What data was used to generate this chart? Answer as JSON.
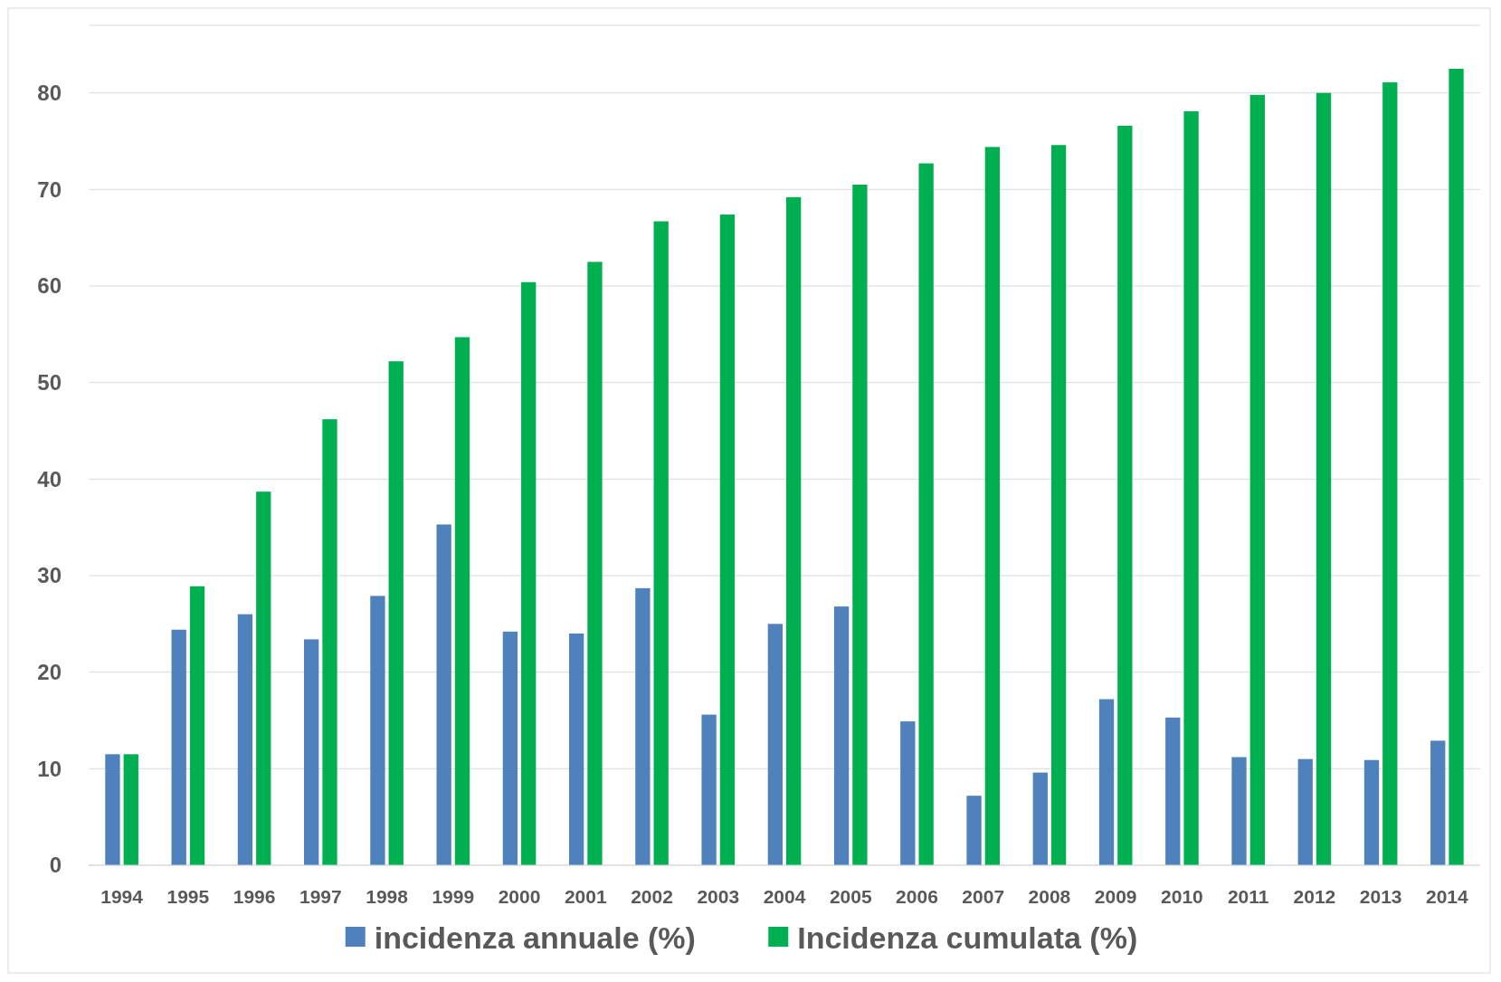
{
  "chart_data": {
    "type": "bar",
    "categories": [
      "1994",
      "1995",
      "1996",
      "1997",
      "1998",
      "1999",
      "2000",
      "2001",
      "2002",
      "2003",
      "2004",
      "2005",
      "2006",
      "2007",
      "2008",
      "2009",
      "2010",
      "2011",
      "2012",
      "2013",
      "2014"
    ],
    "series": [
      {
        "name": "incidenza annuale (%)",
        "color": "#4f81bd",
        "values": [
          11.5,
          24.4,
          26.0,
          23.4,
          27.9,
          35.3,
          24.2,
          24.0,
          28.7,
          15.6,
          25.0,
          26.8,
          14.9,
          7.2,
          9.6,
          17.2,
          15.3,
          11.2,
          11.0,
          10.9,
          12.9
        ]
      },
      {
        "name": "Incidenza cumulata (%)",
        "color": "#00b050",
        "values": [
          11.5,
          28.9,
          38.7,
          46.2,
          52.2,
          54.7,
          60.4,
          62.5,
          66.7,
          67.4,
          69.2,
          70.5,
          72.7,
          74.4,
          74.6,
          76.6,
          78.1,
          79.8,
          80.0,
          81.1,
          82.5
        ]
      }
    ],
    "ylim": [
      0,
      87
    ],
    "yticks": [
      0,
      10,
      20,
      30,
      40,
      50,
      60,
      70,
      80
    ],
    "grid": "y",
    "legend": "bottom"
  }
}
